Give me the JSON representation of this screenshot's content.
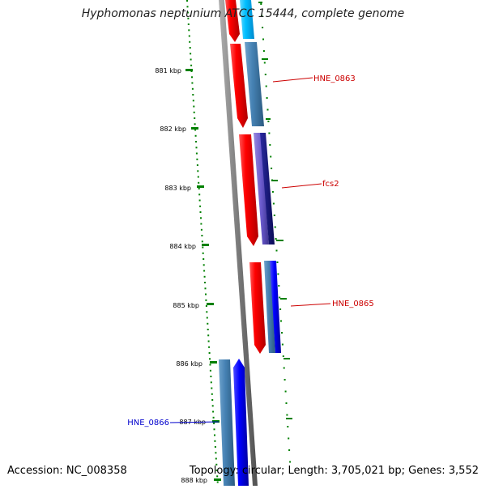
{
  "header": {
    "title": "Hyphomonas neptunium ATCC 15444, complete genome"
  },
  "footer": {
    "accession": "Accession: NC_008358",
    "topology": "Topology: circular; Length: 3,705,021 bp; Genes: 3,552"
  },
  "ruler": {
    "unit": "kbp",
    "tick_labels": [
      "881 kbp",
      "882 kbp",
      "883 kbp",
      "884 kbp",
      "885 kbp",
      "886 kbp",
      "887 kbp",
      "888 kbp"
    ]
  },
  "gene_labels": [
    {
      "text": "HNE_0863",
      "color": "#cc0000"
    },
    {
      "text": "fcs2",
      "color": "#cc0000"
    },
    {
      "text": "HNE_0865",
      "color": "#cc0000"
    },
    {
      "text": "HNE_0866",
      "color": "#0000cc"
    }
  ],
  "colors": {
    "forward_strand": "#ff0000",
    "reverse_strand": "#0000ff",
    "steel_blue": "#4682b4",
    "cyan": "#00bfff",
    "dark_blue": "#1a1a80",
    "ruler_dots": "#008000",
    "backbone": "#808080"
  }
}
